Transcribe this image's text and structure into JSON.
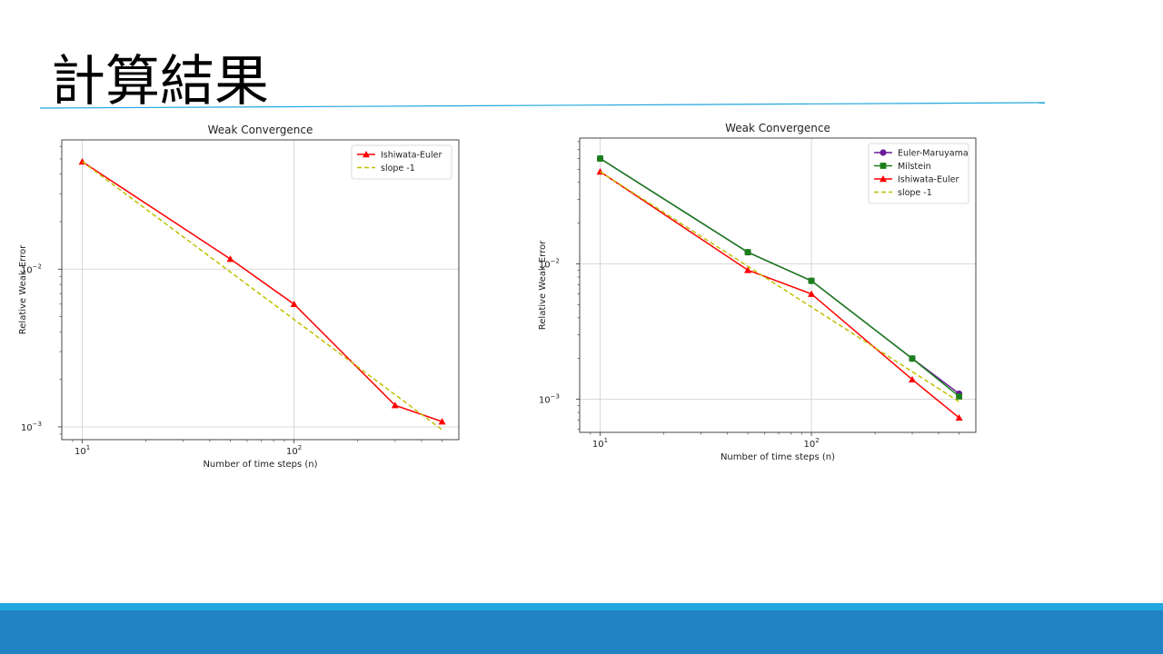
{
  "slide": {
    "title": "計算結果"
  },
  "colors": {
    "accent_line": "#21a7de",
    "footer_light": "#21a7de",
    "footer_dark": "#2182c4"
  },
  "chart_data": [
    {
      "type": "line",
      "title": "Weak Convergence",
      "xlabel": "Number of time steps (n)",
      "ylabel": "Relative Weak Error",
      "xscale": "log",
      "yscale": "log",
      "xlim": [
        8,
        600
      ],
      "ylim": [
        0.00083,
        0.066
      ],
      "xticks": [
        {
          "value": 10,
          "base": "10",
          "exp": "1"
        },
        {
          "value": 100,
          "base": "10",
          "exp": "2"
        }
      ],
      "yticks": [
        {
          "value": 0.001,
          "base": "10",
          "exp": "−3"
        },
        {
          "value": 0.01,
          "base": "10",
          "exp": "−2"
        }
      ],
      "grid": true,
      "legend_position": "top-right",
      "series": [
        {
          "name": "Ishiwata-Euler",
          "color": "#ff0000",
          "marker": "triangle",
          "dash": false,
          "x": [
            10,
            50,
            100,
            300,
            500
          ],
          "y": [
            0.048,
            0.0116,
            0.006,
            0.00137,
            0.00108
          ]
        },
        {
          "name": "slope -1",
          "color": "#bfbf00",
          "marker": "none",
          "dash": true,
          "x": [
            10,
            500
          ],
          "y": [
            0.048,
            0.00096
          ]
        }
      ]
    },
    {
      "type": "line",
      "title": "Weak Convergence",
      "xlabel": "Number of time steps (n)",
      "ylabel": "Relative Weak Error",
      "xscale": "log",
      "yscale": "log",
      "xlim": [
        8,
        600
      ],
      "ylim": [
        0.00057,
        0.085
      ],
      "xticks": [
        {
          "value": 10,
          "base": "10",
          "exp": "1"
        },
        {
          "value": 100,
          "base": "10",
          "exp": "2"
        }
      ],
      "yticks": [
        {
          "value": 0.001,
          "base": "10",
          "exp": "−3"
        },
        {
          "value": 0.01,
          "base": "10",
          "exp": "−2"
        }
      ],
      "grid": true,
      "legend_position": "top-right",
      "series": [
        {
          "name": "Euler-Maruyama",
          "color": "#6a1b9a",
          "marker": "circle",
          "dash": false,
          "x": [
            10,
            50,
            100,
            300,
            500
          ],
          "y": [
            0.06,
            0.0122,
            0.0075,
            0.002,
            0.0011
          ]
        },
        {
          "name": "Milstein",
          "color": "#1a7f1a",
          "marker": "square",
          "dash": false,
          "x": [
            10,
            50,
            100,
            300,
            500
          ],
          "y": [
            0.06,
            0.0122,
            0.0075,
            0.002,
            0.00105
          ]
        },
        {
          "name": "Ishiwata-Euler",
          "color": "#ff0000",
          "marker": "triangle",
          "dash": false,
          "x": [
            10,
            50,
            100,
            300,
            500
          ],
          "y": [
            0.048,
            0.009,
            0.006,
            0.0014,
            0.00073
          ]
        },
        {
          "name": "slope -1",
          "color": "#bfbf00",
          "marker": "none",
          "dash": true,
          "x": [
            10,
            500
          ],
          "y": [
            0.048,
            0.00096
          ]
        }
      ]
    }
  ]
}
